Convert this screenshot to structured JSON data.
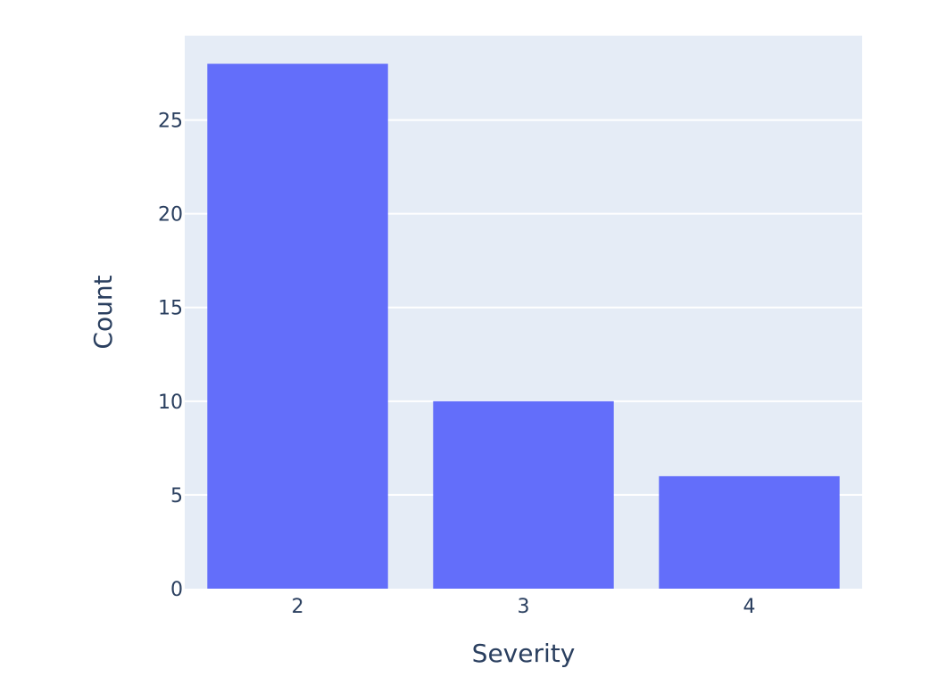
{
  "chart_data": {
    "type": "bar",
    "categories": [
      "2",
      "3",
      "4"
    ],
    "values": [
      28,
      10,
      6
    ],
    "xlabel": "Severity",
    "ylabel": "Count",
    "ylim": [
      0,
      29.5
    ],
    "yticks": [
      0,
      5,
      10,
      15,
      20,
      25
    ],
    "grid": true,
    "colors": {
      "bar": "#636efa",
      "plot_background": "#e5ecf6",
      "gridline": "#ffffff",
      "text": "#2a3f5f"
    }
  }
}
